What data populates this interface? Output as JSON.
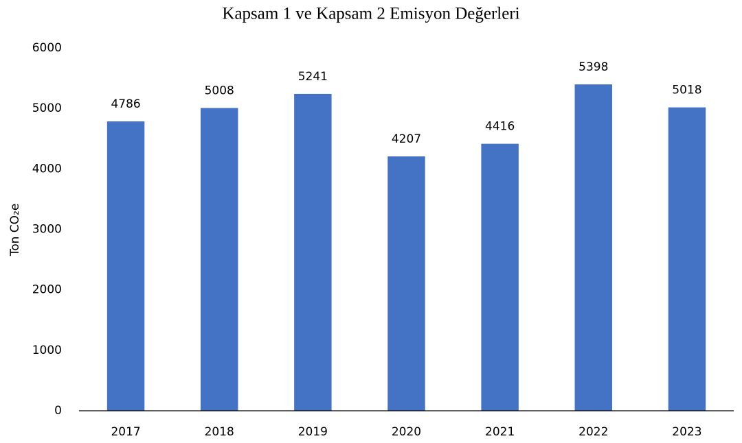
{
  "chart_data": {
    "type": "bar",
    "title": "Kapsam 1 ve Kapsam 2 Emisyon Değerleri",
    "y_label": "Ton CO₂e",
    "categories": [
      "2017",
      "2018",
      "2019",
      "2020",
      "2021",
      "2022",
      "2023"
    ],
    "values": [
      4786,
      5008,
      5241,
      4207,
      4416,
      5398,
      5018
    ],
    "color": "#4472c4",
    "ylim": [
      0,
      6000
    ],
    "yticks": [
      0,
      1000,
      2000,
      3000,
      4000,
      5000,
      6000
    ],
    "grid": false
  }
}
